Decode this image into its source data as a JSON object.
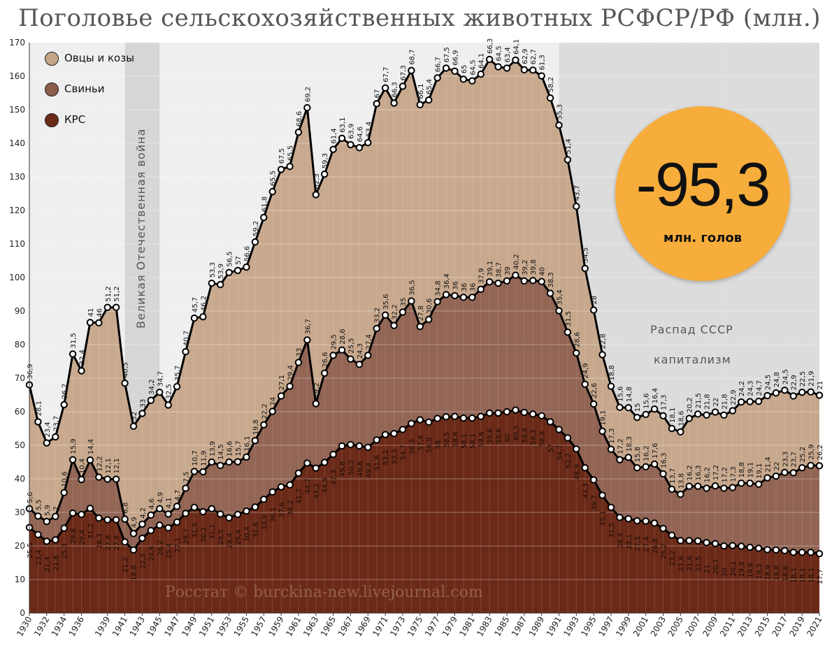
{
  "title": "Поголовье сельскохозяйственных животных РСФСР/РФ (млн.)",
  "badge": {
    "value": "-95,3",
    "unit": "млн. голов"
  },
  "annotations": {
    "war": "Великая Отечественная война",
    "collapse": "Распад СССР",
    "capitalism": "капитализм",
    "source": "Росстат © burckina-new.livejournal.com"
  },
  "colors": {
    "sheep": "#c5a487",
    "pigs": "#8c5d4c",
    "cattle": "#6b2a18",
    "war_band": "#d6d6d6",
    "post_band": "#dcdcdc",
    "badge": "#f7ad3b"
  },
  "chart_data": {
    "type": "area",
    "stacked": true,
    "ylim": [
      0,
      170
    ],
    "yticks": [
      0,
      10,
      20,
      30,
      40,
      50,
      60,
      70,
      80,
      90,
      100,
      110,
      120,
      130,
      140,
      150,
      160,
      170
    ],
    "xlim": [
      1930,
      2021
    ],
    "xticks": [
      1930,
      1932,
      1934,
      1936,
      1939,
      1941,
      1943,
      1945,
      1947,
      1949,
      1951,
      1953,
      1955,
      1957,
      1959,
      1961,
      1963,
      1965,
      1967,
      1969,
      1971,
      1973,
      1975,
      1977,
      1979,
      1981,
      1983,
      1985,
      1987,
      1989,
      1991,
      1993,
      1995,
      1997,
      1999,
      2001,
      2003,
      2005,
      2007,
      2009,
      2011,
      2013,
      2015,
      2017,
      2019,
      2021
    ],
    "grid": true,
    "legend_position": "top-left",
    "shaded_periods": [
      {
        "start": 1941,
        "end": 1945
      },
      {
        "start": 1991,
        "end": 2021
      }
    ],
    "x": [
      1930,
      1931,
      1932,
      1933,
      1934,
      1935,
      1936,
      1937,
      1938,
      1939,
      1940,
      1941,
      1942,
      1943,
      1944,
      1945,
      1946,
      1947,
      1948,
      1949,
      1950,
      1951,
      1952,
      1953,
      1954,
      1955,
      1956,
      1957,
      1958,
      1959,
      1960,
      1961,
      1962,
      1963,
      1964,
      1965,
      1966,
      1967,
      1968,
      1969,
      1970,
      1971,
      1972,
      1973,
      1974,
      1975,
      1976,
      1977,
      1978,
      1979,
      1980,
      1981,
      1982,
      1983,
      1984,
      1985,
      1986,
      1987,
      1988,
      1989,
      1990,
      1991,
      1992,
      1993,
      1994,
      1995,
      1996,
      1997,
      1998,
      1999,
      2000,
      2001,
      2002,
      2003,
      2004,
      2005,
      2006,
      2007,
      2008,
      2009,
      2010,
      2011,
      2012,
      2013,
      2014,
      2015,
      2016,
      2017,
      2018,
      2019,
      2020,
      2021
    ],
    "series": [
      {
        "name": "КРС",
        "values": [
          25.5,
          23.4,
          21.4,
          21.8,
          25.3,
          29.8,
          29.4,
          31.2,
          28.3,
          27.8,
          27.8,
          21.2,
          18.8,
          22.3,
          24.6,
          26.2,
          25.4,
          27.1,
          29.7,
          31.5,
          30.2,
          31.1,
          29.5,
          28.4,
          29.4,
          30.4,
          31.6,
          33.9,
          36.1,
          37.6,
          38.2,
          41.7,
          44.7,
          43.2,
          44.9,
          47.3,
          49.8,
          50.2,
          49.8,
          49.4,
          51.6,
          53.2,
          53.5,
          54.7,
          56.5,
          57.6,
          56.9,
          58.0,
          58.5,
          58.6,
          58.1,
          58.1,
          58.6,
          59.6,
          59.6,
          60.0,
          60.5,
          59.8,
          59.3,
          58.8,
          57.0,
          54.7,
          52.2,
          48.9,
          43.3,
          39.7,
          35.1,
          31.5,
          28.5,
          28.1,
          27.5,
          27.4,
          26.8,
          25.2,
          23.2,
          21.6,
          21.6,
          21.5,
          21.0,
          20.7,
          20.0,
          20.1,
          19.9,
          19.6,
          19.3,
          18.9,
          18.8,
          18.6,
          18.1,
          18.1,
          18.1,
          17.7
        ]
      },
      {
        "name": "Свиньи",
        "values": [
          5.6,
          5.5,
          5.9,
          7.0,
          10.6,
          15.9,
          10.4,
          14.4,
          12.2,
          12.1,
          12.1,
          6.8,
          4.9,
          4.2,
          4.6,
          4.9,
          4.1,
          4.7,
          7.5,
          10.7,
          11.9,
          13.9,
          14.5,
          16.6,
          15.7,
          16.1,
          19.8,
          22.2,
          24.0,
          27.1,
          29.4,
          33.0,
          36.7,
          19.2,
          26.6,
          29.5,
          28.6,
          25.5,
          24.3,
          27.4,
          33.2,
          35.6,
          32.2,
          35.0,
          36.5,
          27.8,
          30.6,
          34.8,
          36.4,
          36.0,
          36.0,
          36.0,
          37.9,
          39.1,
          38.7,
          39.0,
          40.2,
          39.2,
          39.8,
          40.0,
          38.3,
          35.4,
          31.5,
          28.6,
          24.9,
          22.6,
          19.1,
          17.3,
          17.2,
          18.3,
          15.8,
          16.2,
          17.6,
          16.3,
          13.7,
          13.8,
          16.2,
          16.3,
          16.2,
          17.2,
          17.2,
          17.3,
          18.8,
          19.1,
          19.1,
          21.4,
          22.0,
          23.3,
          23.7,
          25.2,
          25.9,
          26.2
        ]
      },
      {
        "name": "Овцы и козы",
        "values": [
          36.9,
          28.1,
          23.4,
          23.7,
          26.2,
          31.5,
          32.4,
          41.0,
          46.0,
          51.2,
          51.2,
          40.5,
          32.0,
          33.0,
          34.2,
          34.7,
          32.5,
          35.7,
          40.7,
          45.7,
          46.2,
          53.3,
          53.9,
          56.5,
          57.0,
          56.6,
          59.2,
          61.8,
          65.5,
          67.5,
          65.5,
          68.6,
          69.2,
          62.3,
          59.3,
          61.4,
          63.1,
          63.9,
          64.6,
          63.4,
          67.0,
          67.7,
          66.3,
          67.3,
          68.7,
          66.1,
          65.4,
          66.7,
          67.5,
          66.9,
          65.0,
          64.5,
          64.1,
          66.3,
          64.5,
          63.4,
          64.1,
          62.9,
          62.7,
          61.3,
          58.2,
          55.3,
          51.4,
          43.7,
          34.5,
          28.0,
          22.8,
          18.8,
          15.6,
          14.8,
          15.0,
          15.6,
          16.4,
          17.3,
          18.1,
          18.6,
          20.2,
          21.5,
          21.8,
          22.0,
          21.8,
          22.9,
          24.2,
          24.3,
          24.7,
          24.5,
          24.8,
          24.5,
          22.9,
          22.5,
          21.9,
          21.0
        ]
      }
    ]
  }
}
